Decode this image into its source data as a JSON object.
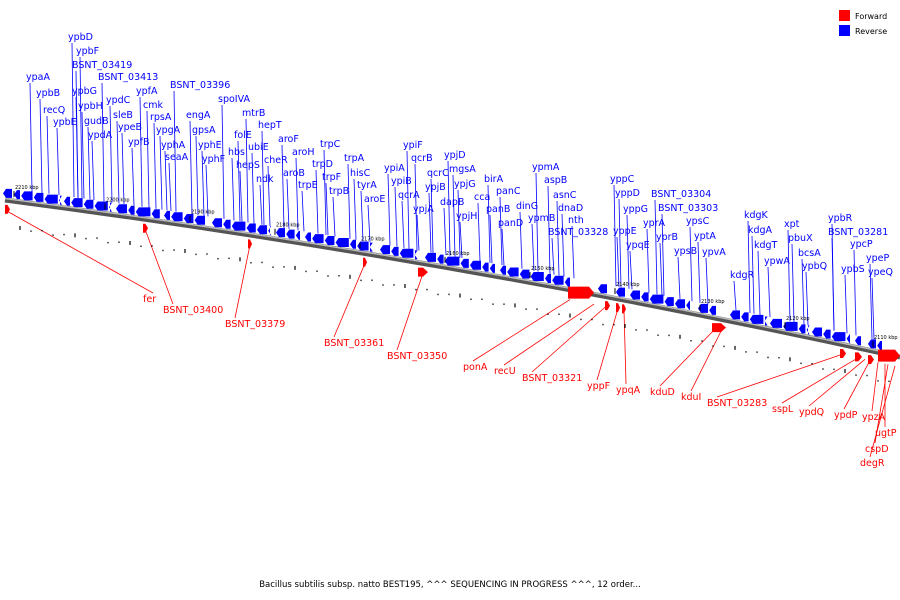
{
  "legend": [
    {
      "label": "Forward",
      "color": "#ff0000"
    },
    {
      "label": "Reverse",
      "color": "#0000ff"
    }
  ],
  "colors": {
    "forward": "#ff0000",
    "reverse": "#0000ff",
    "backbone": "#777777"
  },
  "caption": "Bacillus subtilis subsp. natto BEST195, ^^^ SEQUENCING IN PROGRESS ^^^, 12 order...",
  "ticks": [
    "2210 kbp",
    "2200 kbp",
    "2190 kbp",
    "2180 kbp",
    "2170 kbp",
    "2160 kbp",
    "2150 kbp",
    "2140 kbp",
    "2130 kbp",
    "2120 kbp",
    "2110 kbp"
  ],
  "reverse_genes": [
    "ypaA",
    "ypbB",
    "recQ",
    "ypbE",
    "ypbG",
    "ypbH",
    "gudB",
    "ypdA",
    "ypbD",
    "ypbF",
    "BSNT_03419",
    "BSNT_03413",
    "ypdC",
    "sleB",
    "ypeB",
    "ypfB",
    "ypfA",
    "cmk",
    "rpsA",
    "ypgA",
    "yphA",
    "seaA",
    "BSNT_03396",
    "engA",
    "gpsA",
    "yphE",
    "yphF",
    "spoIVA",
    "mtrB",
    "hepT",
    "folE",
    "hbs",
    "hepS",
    "ubiE",
    "ndk",
    "cheR",
    "aroF",
    "aroH",
    "aroB",
    "trpD",
    "trpE",
    "trpC",
    "trpF",
    "trpB",
    "hisC",
    "trpA",
    "tyrA",
    "aroE",
    "ypiA",
    "ypiB",
    "ypiF",
    "qcrB",
    "qcrA",
    "qcrC",
    "ypjA",
    "ypjB",
    "ypjD",
    "mgsA",
    "dapB",
    "ypjG",
    "ypjH",
    "cca",
    "birA",
    "panB",
    "panC",
    "panD",
    "dinG",
    "ypmA",
    "aspB",
    "ypmB",
    "asnC",
    "dnaD",
    "nth",
    "BSNT_03328",
    "yppC",
    "yppD",
    "yppG",
    "yppE",
    "ypqE",
    "yprA",
    "yprB",
    "BSNT_03304",
    "BSNT_03303",
    "ypsC",
    "ypsB",
    "yptA",
    "ypvA",
    "kdgR",
    "kdgK",
    "kdgA",
    "kdgT",
    "ypwA",
    "xpt",
    "pbuX",
    "bcsA",
    "ypbQ",
    "ypbR",
    "BSNT_03281",
    "ypbS",
    "ypcP",
    "ypeP",
    "ypeQ"
  ],
  "forward_genes": [
    "fer",
    "BSNT_03400",
    "BSNT_03379",
    "BSNT_03361",
    "BSNT_03350",
    "ponA",
    "recU",
    "BSNT_03321",
    "yppF",
    "ypqA",
    "kduD",
    "kduI",
    "BSNT_03283",
    "sspL",
    "ypdQ",
    "ypdP",
    "ypzA",
    "ugtP",
    "cspD",
    "degR"
  ]
}
